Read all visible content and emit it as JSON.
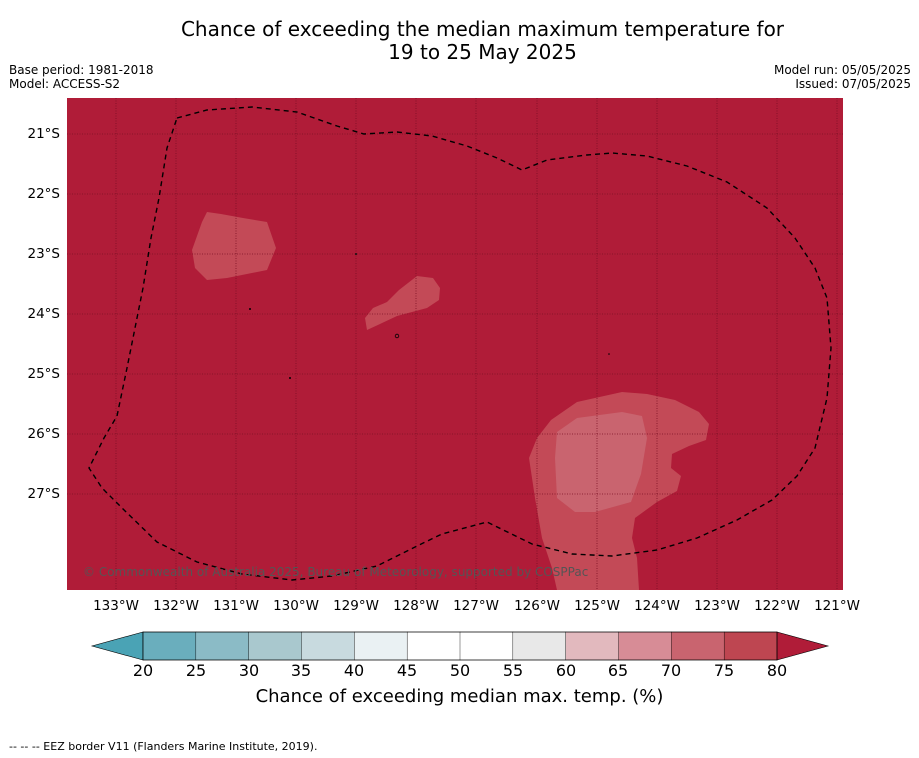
{
  "title_line1": "Chance of exceeding the median maximum temperature for",
  "title_line2": "19 to 25 May 2025",
  "base_period": "Base period: 1981-2018",
  "model": "Model: ACCESS-S2",
  "model_run": "Model run: 05/05/2025",
  "issued": "Issued: 07/05/2025",
  "copyright": "© Commonwealth of Australia 2025, Bureau of Meteorology, supported by COSPPac",
  "footnote": "-- -- -- EEZ border V11 (Flanders Marine Institute, 2019).",
  "lat_labels": [
    "21°S",
    "22°S",
    "23°S",
    "24°S",
    "25°S",
    "26°S",
    "27°S"
  ],
  "lon_labels": [
    "133°W",
    "132°W",
    "131°W",
    "130°W",
    "129°W",
    "128°W",
    "127°W",
    "126°W",
    "125°W",
    "124°W",
    "123°W",
    "122°W",
    "121°W"
  ],
  "colorbar": {
    "title": "Chance of exceeding median max. temp. (%)",
    "ticks": [
      "20",
      "25",
      "30",
      "35",
      "40",
      "45",
      "50",
      "55",
      "60",
      "65",
      "70",
      "75",
      "80"
    ],
    "colors": [
      "#6aaebd",
      "#8bbbc6",
      "#a9c8ce",
      "#c8dadf",
      "#eaf1f3",
      "#ffffff",
      "#ffffff",
      "#e8e8e8",
      "#e2b9be",
      "#d78c96",
      "#c9646f",
      "#be4651"
    ],
    "under_color": "#4aa3b5",
    "over_color": "#b01c38"
  },
  "map_colors": {
    "background": "#b01c38",
    "contour_70_75": "#c34a57",
    "contour_75_80": "#c9646f",
    "grid": "#7a1024"
  }
}
